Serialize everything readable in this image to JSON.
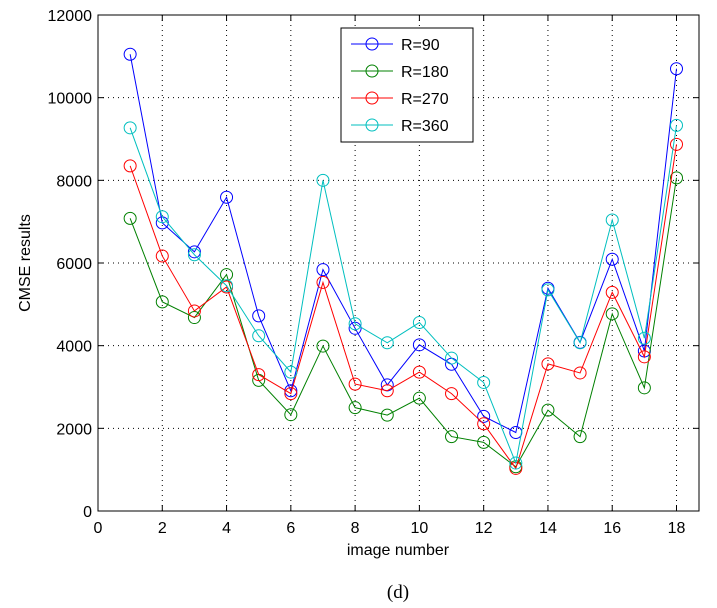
{
  "chart_data": {
    "type": "line",
    "title": "",
    "xlabel": "image number",
    "ylabel": "CMSE results",
    "caption": "(d)",
    "xlim": [
      0,
      18.7
    ],
    "ylim": [
      0,
      12000
    ],
    "xticks": [
      0,
      2,
      4,
      6,
      8,
      10,
      12,
      14,
      16,
      18
    ],
    "yticks": [
      0,
      2000,
      4000,
      6000,
      8000,
      10000,
      12000
    ],
    "grid": true,
    "legend_position": "top-center",
    "x": [
      1,
      2,
      3,
      4,
      5,
      6,
      7,
      8,
      9,
      10,
      11,
      12,
      13,
      14,
      15,
      16,
      17,
      18
    ],
    "series": [
      {
        "name": "R=90",
        "color": "#0000ff",
        "values": [
          11050,
          6970,
          6270,
          7590,
          4720,
          2910,
          5840,
          4420,
          3050,
          4020,
          3550,
          2290,
          1900,
          5390,
          4080,
          6090,
          3870,
          10700
        ]
      },
      {
        "name": "R=180",
        "color": "#008000",
        "values": [
          7080,
          5060,
          4680,
          5720,
          3160,
          2330,
          3990,
          2500,
          2320,
          2730,
          1800,
          1660,
          1070,
          2440,
          1800,
          4770,
          2980,
          8060
        ]
      },
      {
        "name": "R=270",
        "color": "#ff0000",
        "values": [
          8350,
          6170,
          4840,
          5420,
          3300,
          2840,
          5530,
          3070,
          2910,
          3360,
          2840,
          2110,
          1030,
          3560,
          3340,
          5290,
          3730,
          8870
        ]
      },
      {
        "name": "R=360",
        "color": "#00bfbf",
        "values": [
          9270,
          7120,
          6200,
          5450,
          4240,
          3360,
          8000,
          4530,
          4070,
          4560,
          3700,
          3110,
          1160,
          5350,
          4070,
          7040,
          4180,
          9330
        ]
      }
    ]
  }
}
